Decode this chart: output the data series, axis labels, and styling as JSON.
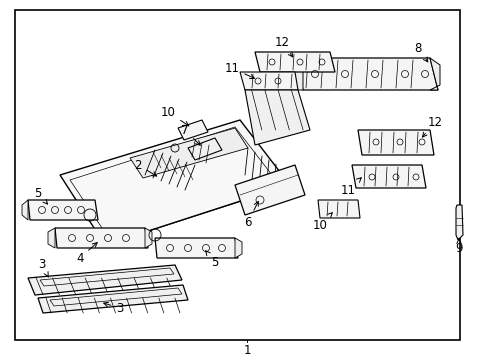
{
  "bg_color": "#ffffff",
  "border_color": "#000000",
  "line_color": "#000000",
  "text_color": "#000000",
  "figsize": [
    4.9,
    3.6
  ],
  "dpi": 100
}
